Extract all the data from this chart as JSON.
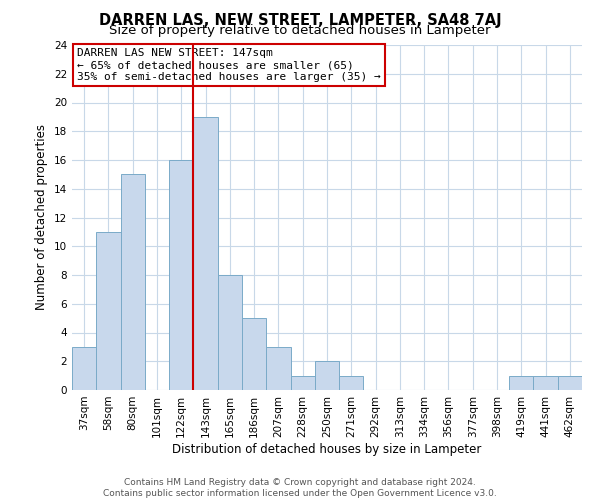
{
  "title": "DARREN LAS, NEW STREET, LAMPETER, SA48 7AJ",
  "subtitle": "Size of property relative to detached houses in Lampeter",
  "xlabel": "Distribution of detached houses by size in Lampeter",
  "ylabel": "Number of detached properties",
  "bar_color": "#c8d8ec",
  "bar_edge_color": "#7aaac8",
  "bins": [
    "37sqm",
    "58sqm",
    "80sqm",
    "101sqm",
    "122sqm",
    "143sqm",
    "165sqm",
    "186sqm",
    "207sqm",
    "228sqm",
    "250sqm",
    "271sqm",
    "292sqm",
    "313sqm",
    "334sqm",
    "356sqm",
    "377sqm",
    "398sqm",
    "419sqm",
    "441sqm",
    "462sqm"
  ],
  "values": [
    3,
    11,
    15,
    0,
    16,
    19,
    8,
    5,
    3,
    1,
    2,
    1,
    0,
    0,
    0,
    0,
    0,
    0,
    1,
    1,
    1
  ],
  "vline_x_idx": 5,
  "vline_color": "#cc0000",
  "ylim": [
    0,
    24
  ],
  "yticks": [
    0,
    2,
    4,
    6,
    8,
    10,
    12,
    14,
    16,
    18,
    20,
    22,
    24
  ],
  "annotation_title": "DARREN LAS NEW STREET: 147sqm",
  "annotation_line1": "← 65% of detached houses are smaller (65)",
  "annotation_line2": "35% of semi-detached houses are larger (35) →",
  "annotation_box_color": "#ffffff",
  "annotation_box_edge": "#cc0000",
  "footer_line1": "Contains HM Land Registry data © Crown copyright and database right 2024.",
  "footer_line2": "Contains public sector information licensed under the Open Government Licence v3.0.",
  "bg_color": "#ffffff",
  "grid_color": "#c8d8e8",
  "title_fontsize": 10.5,
  "subtitle_fontsize": 9.5,
  "label_fontsize": 8.5,
  "tick_fontsize": 7.5,
  "footer_fontsize": 6.5,
  "ann_fontsize": 8
}
